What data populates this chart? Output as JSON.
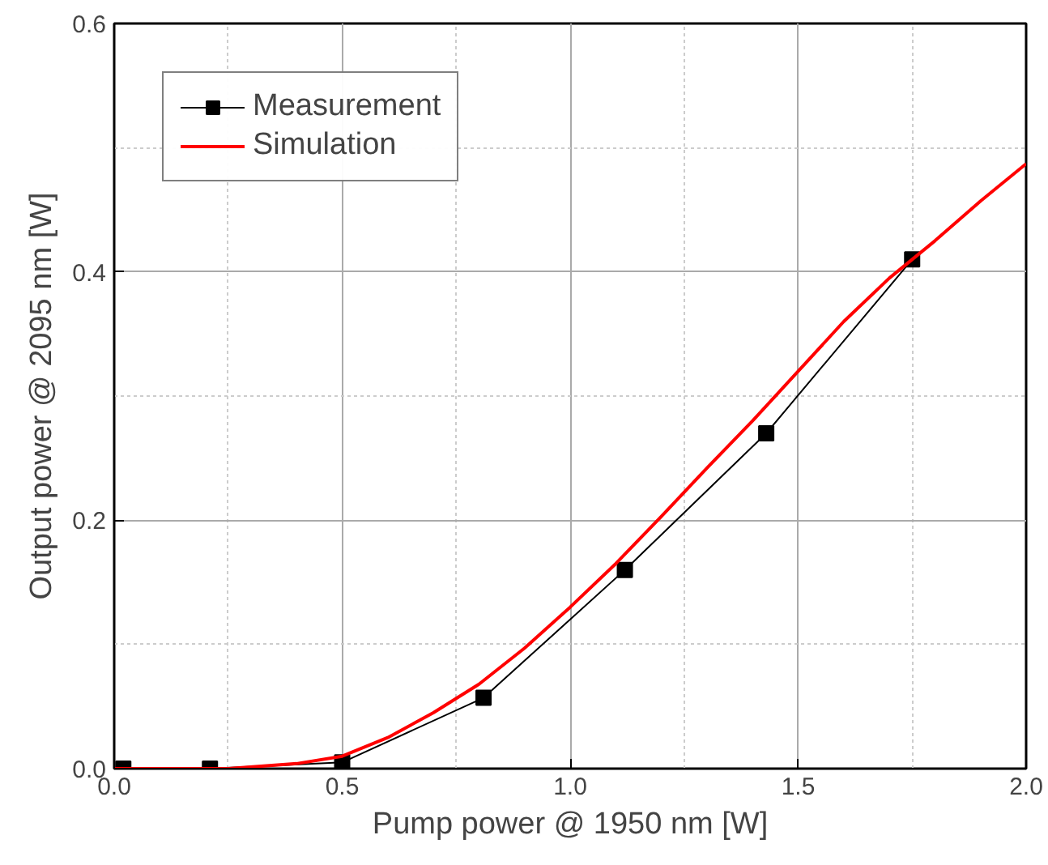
{
  "chart_data": {
    "type": "line",
    "xlabel": "Pump power @ 1950 nm [W]",
    "ylabel": "Output power @ 2095 nm [W]",
    "xlim": [
      0,
      2
    ],
    "ylim": [
      0,
      0.6
    ],
    "xticks": [
      {
        "value": 0,
        "label": "0.0"
      },
      0.5,
      {
        "value": 1,
        "label": "1.0"
      },
      1.5,
      {
        "value": 2,
        "label": "2.0"
      }
    ],
    "yticks": [
      {
        "value": 0,
        "label": "0.0"
      },
      0.2,
      0.4,
      0.6
    ],
    "grid": true,
    "legend": "top left",
    "series": [
      {
        "name": "Measurement",
        "color": "#000000",
        "marker": "square",
        "x": [
          0.02,
          0.21,
          0.5,
          0.81,
          1.12,
          1.43,
          1.75
        ],
        "values": [
          0.0,
          0.0,
          0.005,
          0.057,
          0.16,
          0.27,
          0.41
        ]
      },
      {
        "name": "Simulation",
        "color": "#ff0000",
        "marker": "none",
        "x": [
          0.0,
          0.25,
          0.4,
          0.5,
          0.6,
          0.7,
          0.8,
          0.9,
          1.0,
          1.1,
          1.2,
          1.3,
          1.4,
          1.5,
          1.6,
          1.7,
          1.75,
          1.8,
          1.9,
          2.0
        ],
        "values": [
          0.0,
          0.0,
          0.004,
          0.01,
          0.025,
          0.045,
          0.068,
          0.097,
          0.13,
          0.165,
          0.203,
          0.242,
          0.28,
          0.32,
          0.36,
          0.395,
          0.41,
          0.425,
          0.457,
          0.487
        ]
      }
    ]
  }
}
